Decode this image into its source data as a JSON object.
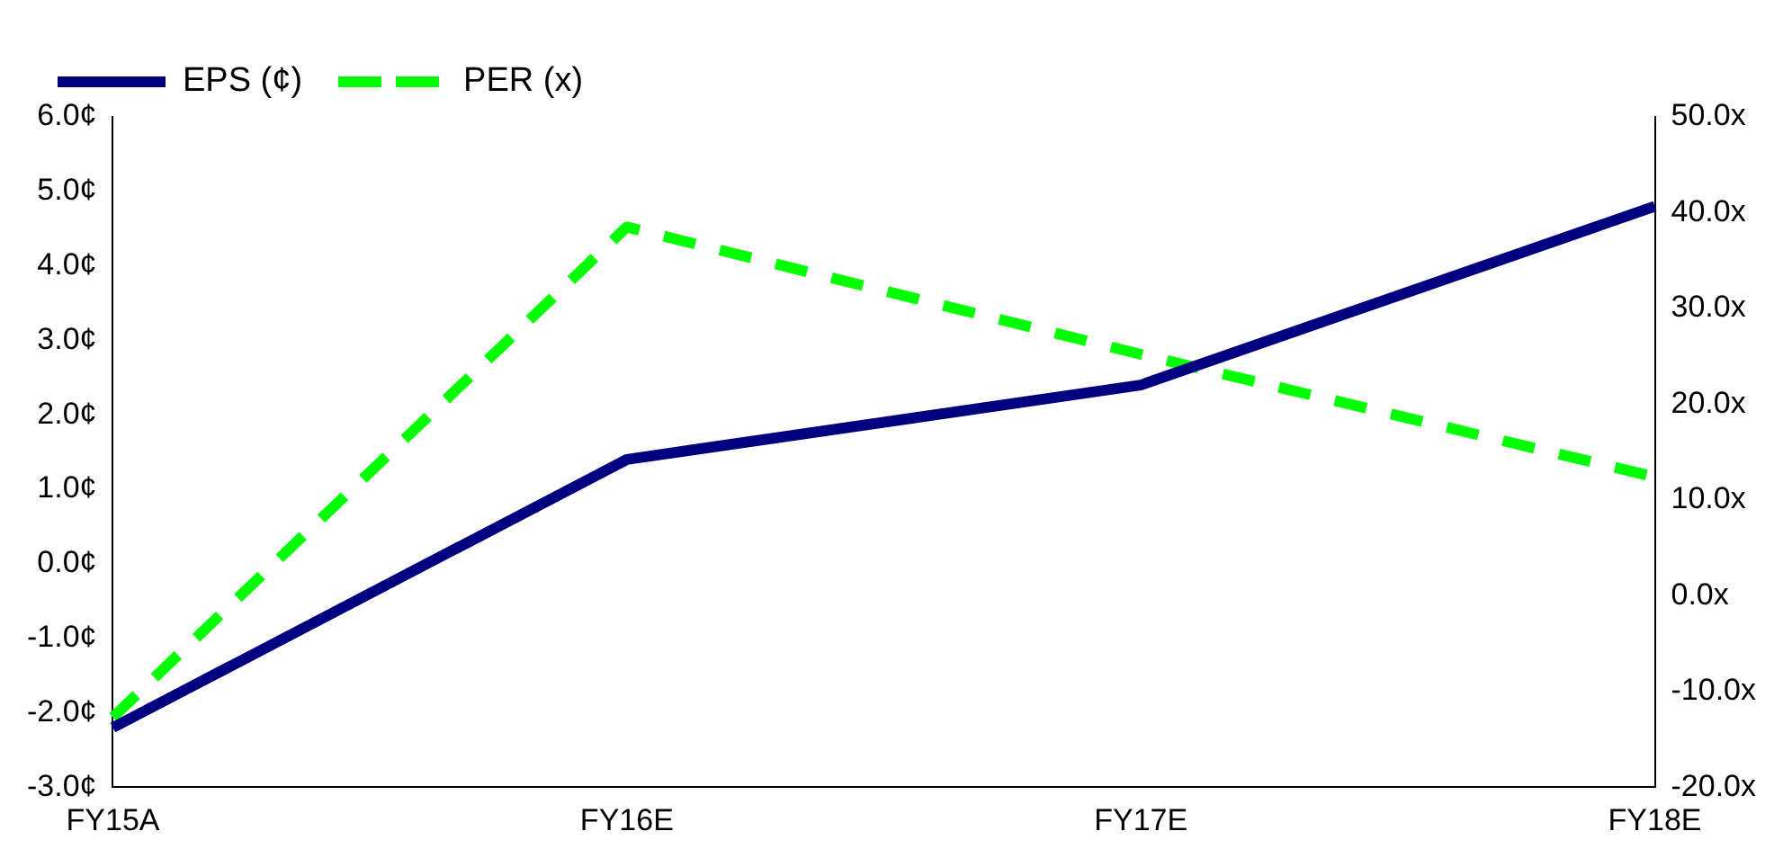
{
  "chart_data": {
    "type": "line",
    "categories": [
      "FY15A",
      "FY16E",
      "FY17E",
      "FY18E"
    ],
    "series": [
      {
        "name": "EPS (¢)",
        "color": "#000080",
        "values": [
          -2.2,
          1.4,
          2.4,
          4.8
        ],
        "line_style": "solid"
      },
      {
        "name": "PER (x)",
        "color": "#00ff00",
        "values": [
          -12.7,
          38.5,
          25.2,
          12.4
        ],
        "axis": "y2",
        "line_style": "dashed"
      }
    ],
    "ylim": [
      -3,
      6
    ],
    "yticks": [
      {
        "value": -3,
        "label": "-3.0¢"
      },
      {
        "value": -2,
        "label": "-2.0¢"
      },
      {
        "value": -1,
        "label": "-1.0¢"
      },
      {
        "value": 0,
        "label": "0.0¢"
      },
      {
        "value": 1,
        "label": "1.0¢"
      },
      {
        "value": 2,
        "label": "2.0¢"
      },
      {
        "value": 3,
        "label": "3.0¢"
      },
      {
        "value": 4,
        "label": "4.0¢"
      },
      {
        "value": 5,
        "label": "5.0¢"
      },
      {
        "value": 6,
        "label": "6.0¢"
      }
    ],
    "y2lim": [
      -20,
      50
    ],
    "y2ticks": [
      {
        "value": -20,
        "label": "-20.0x"
      },
      {
        "value": -10,
        "label": "-10.0x"
      },
      {
        "value": 0,
        "label": "0.0x"
      },
      {
        "value": 10,
        "label": "10.0x"
      },
      {
        "value": 20,
        "label": "20.0x"
      },
      {
        "value": 30,
        "label": "30.0x"
      },
      {
        "value": 40,
        "label": "40.0x"
      },
      {
        "value": 50,
        "label": "50.0x"
      }
    ],
    "legend": "top left",
    "grid": false,
    "marker": "none"
  }
}
